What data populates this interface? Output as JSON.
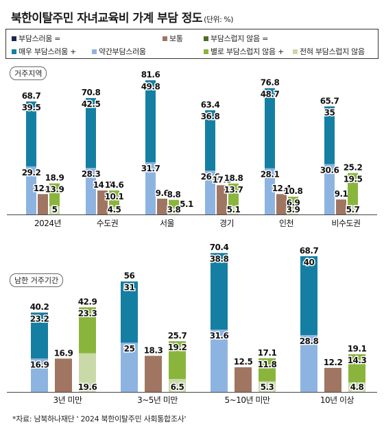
{
  "title": "북한이탈주민 자녀교육비 가계 부담 정도",
  "unit": "(단위: %)",
  "legend": {
    "burden_total": "부담스러움 =",
    "very_burden": "매우 부담스러움 +",
    "somewhat_burden": "약간부담스러움",
    "neutral": "보통",
    "not_burden_total": "부담스럽지 않음 =",
    "not_very": "별로 부담스럽지 않음 +",
    "not_at_all": "전혀 부담스럽지 않음"
  },
  "colors": {
    "burden_total": "#17294d",
    "very_burden": "#157fa3",
    "somewhat_burden": "#8db4e0",
    "neutral": "#a07561",
    "not_burden_total": "#4d6b25",
    "not_very": "#8ab53d",
    "not_at_all": "#cad9a8"
  },
  "source": "*자료: 남북하나재단 ' 2024 북한이탈주민 사회통합조사'",
  "chart_data": [
    {
      "type": "bar",
      "group_label": "거주지역",
      "categories": [
        "2024년",
        "수도권",
        "서울",
        "경기",
        "인천",
        "비수도권"
      ],
      "series": [
        {
          "name": "부담스러움",
          "total": [
            68.7,
            70.8,
            81.6,
            63.4,
            76.8,
            65.7
          ],
          "very": [
            39.5,
            42.5,
            49.8,
            36.8,
            48.7,
            35
          ],
          "somewhat": [
            29.2,
            28.3,
            31.7,
            26.6,
            28.1,
            30.6
          ]
        },
        {
          "name": "보통",
          "values": [
            12.4,
            14.6,
            9.6,
            17.8,
            12.4,
            9.1
          ]
        },
        {
          "name": "부담스럽지 않음",
          "total": [
            18.9,
            14.6,
            8.8,
            18.8,
            10.8,
            25.2
          ],
          "not_very": [
            13.9,
            10.1,
            5.1,
            13.7,
            6.9,
            19.5
          ],
          "not_at_all": [
            5,
            4.5,
            3.8,
            5.1,
            3.9,
            5.7
          ]
        }
      ]
    },
    {
      "type": "bar",
      "group_label": "남한 거주기간",
      "categories": [
        "3년 미만",
        "3~5년 미만",
        "5~10년 미만",
        "10년 이상"
      ],
      "series": [
        {
          "name": "부담스러움",
          "total": [
            40.2,
            56,
            70.4,
            68.7
          ],
          "very": [
            23.2,
            31,
            38.8,
            40
          ],
          "somewhat": [
            16.9,
            25,
            31.6,
            28.8
          ]
        },
        {
          "name": "보통",
          "values": [
            16.9,
            18.3,
            12.5,
            12.2
          ]
        },
        {
          "name": "부담스럽지 않음",
          "total": [
            42.9,
            25.7,
            17.1,
            19.1
          ],
          "not_very": [
            23.3,
            19.2,
            11.8,
            14.3
          ],
          "not_at_all": [
            19.6,
            6.5,
            5.3,
            4.8
          ]
        }
      ]
    }
  ]
}
